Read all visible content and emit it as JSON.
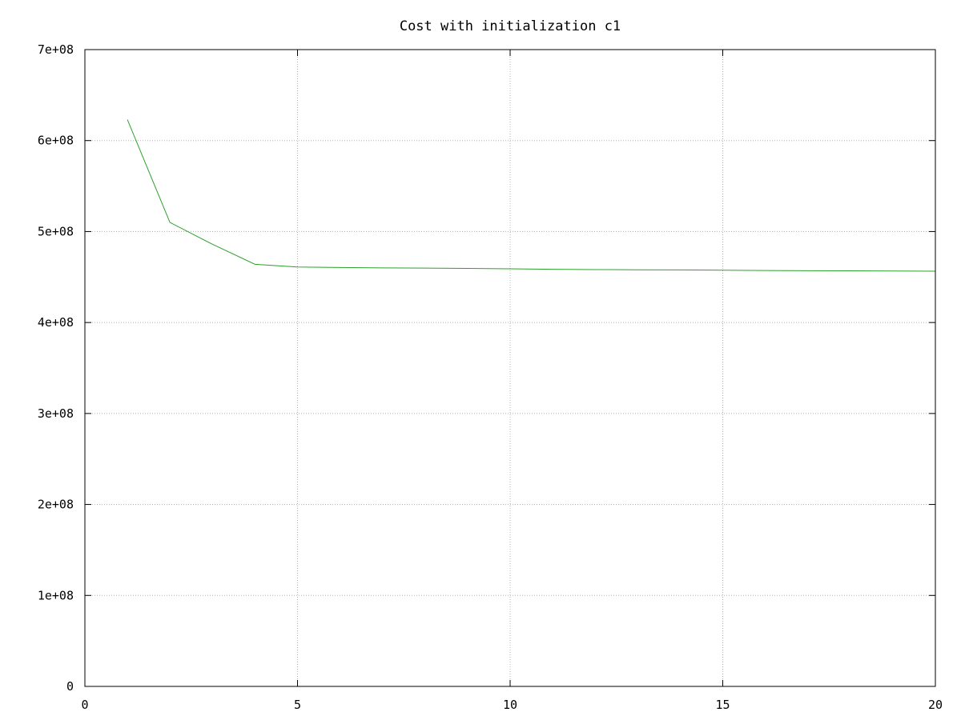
{
  "chart_data": {
    "type": "line",
    "title": "Cost with initialization c1",
    "xlabel": "",
    "ylabel": "",
    "xlim": [
      0,
      20
    ],
    "ylim": [
      0,
      700000000
    ],
    "x_ticks": [
      0,
      5,
      10,
      15,
      20
    ],
    "x_tick_labels": [
      "0",
      "5",
      "10",
      "15",
      "20"
    ],
    "y_ticks": [
      0,
      100000000,
      200000000,
      300000000,
      400000000,
      500000000,
      600000000,
      700000000
    ],
    "y_tick_labels": [
      "0",
      "1e+08",
      "2e+08",
      "3e+08",
      "4e+08",
      "5e+08",
      "6e+08",
      "7e+08"
    ],
    "grid": true,
    "series": [
      {
        "color": "#2ca02c",
        "x": [
          1,
          2,
          3,
          4,
          5,
          6,
          7,
          8,
          9,
          10,
          11,
          12,
          13,
          14,
          15,
          16,
          17,
          18,
          19,
          20
        ],
        "y": [
          623000000,
          510000000,
          486000000,
          464000000,
          461000000,
          460500000,
          460000000,
          459800000,
          459500000,
          459000000,
          458500000,
          458200000,
          458000000,
          457800000,
          457500000,
          457200000,
          457000000,
          456800000,
          456600000,
          456400000
        ]
      },
      {
        "color": "#1f1f9f",
        "x": [
          0,
          20
        ],
        "y": [
          0,
          0
        ]
      }
    ]
  }
}
